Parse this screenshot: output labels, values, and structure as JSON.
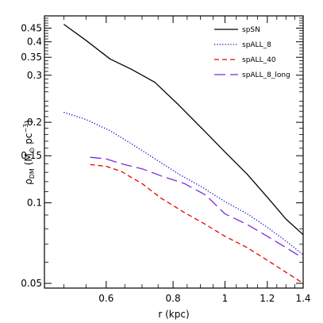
{
  "chart_data": {
    "type": "line",
    "title": "",
    "xlabel": "r (kpc)",
    "ylabel": "ρ_DM (M⊙ pc⁻³)",
    "ylabel_parts": {
      "rho": "ρ",
      "sub": "DM",
      "open": "(M",
      "sun": "⊙",
      "unit": " pc",
      "exp": "−3",
      "close": ")"
    },
    "xscale": "log",
    "yscale": "log",
    "xlim": [
      0.46,
      1.4
    ],
    "ylim": [
      0.048,
      0.5
    ],
    "grid": false,
    "legend_position": "top-right",
    "x_ticks": [
      {
        "value": 0.6,
        "label": "0.6"
      },
      {
        "value": 0.8,
        "label": "0.8"
      },
      {
        "value": 1.0,
        "label": "1"
      },
      {
        "value": 1.2,
        "label": "1.2"
      },
      {
        "value": 1.4,
        "label": "1.4"
      }
    ],
    "y_ticks": [
      {
        "value": 0.05,
        "label": "0.05"
      },
      {
        "value": 0.1,
        "label": "0.1"
      },
      {
        "value": 0.15,
        "label": "0.15"
      },
      {
        "value": 0.2,
        "label": "0.2"
      },
      {
        "value": 0.3,
        "label": "0.3"
      },
      {
        "value": 0.35,
        "label": "0.35"
      },
      {
        "value": 0.4,
        "label": "0.4"
      },
      {
        "value": 0.45,
        "label": "0.45"
      }
    ],
    "series": [
      {
        "name": "spSN",
        "color": "#000000",
        "dash": "solid",
        "x": [
          0.5,
          0.55,
          0.61,
          0.67,
          0.74,
          0.82,
          0.91,
          1.0,
          1.1,
          1.2,
          1.3,
          1.4
        ],
        "y": [
          0.465,
          0.405,
          0.345,
          0.315,
          0.282,
          0.232,
          0.188,
          0.155,
          0.128,
          0.105,
          0.087,
          0.076
        ]
      },
      {
        "name": "spALL_8",
        "color": "#0000cc",
        "dash": "dotted",
        "x": [
          0.5,
          0.55,
          0.61,
          0.67,
          0.74,
          0.82,
          0.91,
          1.0,
          1.1,
          1.2,
          1.3,
          1.4
        ],
        "y": [
          0.218,
          0.205,
          0.186,
          0.166,
          0.146,
          0.128,
          0.114,
          0.101,
          0.091,
          0.081,
          0.072,
          0.064
        ]
      },
      {
        "name": "spALL_40",
        "color": "#ee0000",
        "dash": "dashed",
        "x": [
          0.56,
          0.6,
          0.64,
          0.7,
          0.76,
          0.84,
          0.92,
          1.0,
          1.1,
          1.2,
          1.3,
          1.4
        ],
        "y": [
          0.139,
          0.137,
          0.131,
          0.118,
          0.104,
          0.092,
          0.083,
          0.075,
          0.068,
          0.061,
          0.055,
          0.05
        ]
      },
      {
        "name": "spALL_8_long",
        "color": "#7b2be0",
        "dash": "long-dash",
        "x": [
          0.56,
          0.6,
          0.64,
          0.7,
          0.76,
          0.84,
          0.92,
          1.0,
          1.1,
          1.2,
          1.3,
          1.4
        ],
        "y": [
          0.148,
          0.146,
          0.14,
          0.134,
          0.126,
          0.118,
          0.107,
          0.091,
          0.083,
          0.075,
          0.068,
          0.062
        ]
      }
    ]
  }
}
